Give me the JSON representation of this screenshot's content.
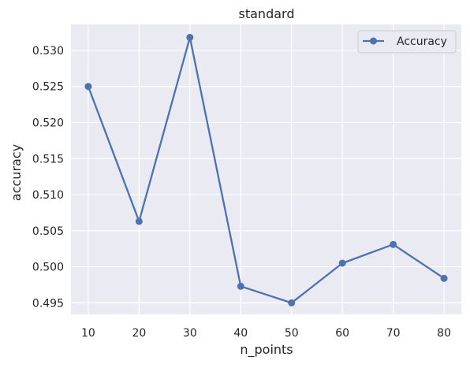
{
  "chart_data": {
    "type": "line",
    "title": "standard",
    "xlabel": "n_points",
    "ylabel": "accuracy",
    "x": [
      10,
      20,
      30,
      40,
      50,
      60,
      70,
      80
    ],
    "series": [
      {
        "name": "Accuracy",
        "color": "#4c72b0",
        "marker": "circle",
        "values": [
          0.525,
          0.5063,
          0.5318,
          0.4973,
          0.495,
          0.5005,
          0.5031,
          0.4984
        ]
      }
    ],
    "xticks": [
      "10",
      "20",
      "30",
      "40",
      "50",
      "60",
      "70",
      "80"
    ],
    "yticks": [
      "0.495",
      "0.500",
      "0.505",
      "0.510",
      "0.515",
      "0.520",
      "0.525",
      "0.530"
    ],
    "xlim": [
      6.6,
      83.4
    ],
    "ylim": [
      0.4934,
      0.5336
    ],
    "grid": true,
    "legend_position": "top-right",
    "colors": {
      "plot_background": "#eaeaf2",
      "grid": "#ffffff",
      "text": "#262626",
      "legend_border": "#cccccc"
    }
  }
}
